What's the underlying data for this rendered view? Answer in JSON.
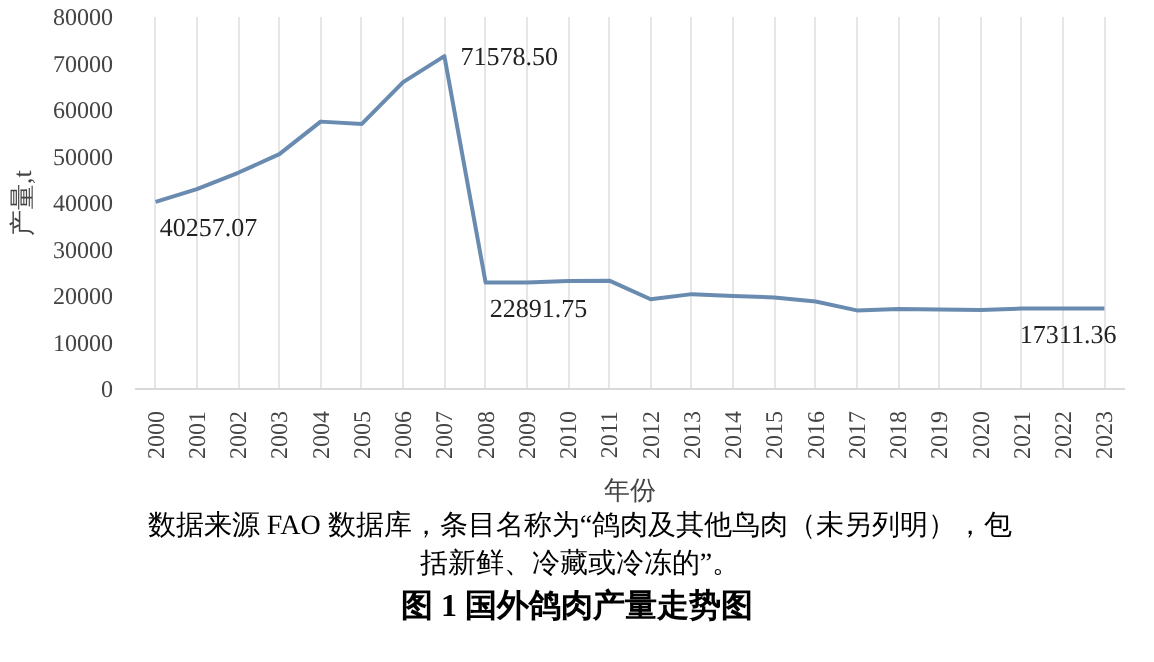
{
  "chart_data": {
    "type": "line",
    "title": "图 1 国外鸽肉产量走势图",
    "xlabel": "年份",
    "ylabel": "产量,t",
    "categories": [
      "2000",
      "2001",
      "2002",
      "2003",
      "2004",
      "2005",
      "2006",
      "2007",
      "2008",
      "2009",
      "2010",
      "2011",
      "2012",
      "2013",
      "2014",
      "2015",
      "2016",
      "2017",
      "2018",
      "2019",
      "2020",
      "2021",
      "2022",
      "2023"
    ],
    "series": [
      {
        "color": "#6a8bb0",
        "values": [
          40257.07,
          43000,
          46500,
          50500,
          57500,
          57000,
          66000,
          71578.5,
          22891.75,
          22900,
          23200,
          23300,
          19300,
          20400,
          20000,
          19700,
          18800,
          16900,
          17200,
          17100,
          17000,
          17300,
          17300,
          17311.36
        ],
        "value_labels": [
          "40257.07",
          null,
          null,
          null,
          null,
          null,
          null,
          "71578.50",
          "22891.75",
          null,
          null,
          null,
          null,
          null,
          null,
          null,
          null,
          null,
          null,
          null,
          null,
          null,
          null,
          "17311.36"
        ]
      }
    ],
    "ylim": [
      0,
      80000
    ],
    "yticks": [
      0,
      10000,
      20000,
      30000,
      40000,
      50000,
      60000,
      70000,
      80000
    ],
    "grid": "x",
    "marker": "none",
    "line_style": "solid",
    "annotations": [
      "数据来源 FAO 数据库，条目名称为“鸽肉及其他鸟肉（未另列明），包括新鲜、冷藏或冷冻的”。"
    ]
  }
}
